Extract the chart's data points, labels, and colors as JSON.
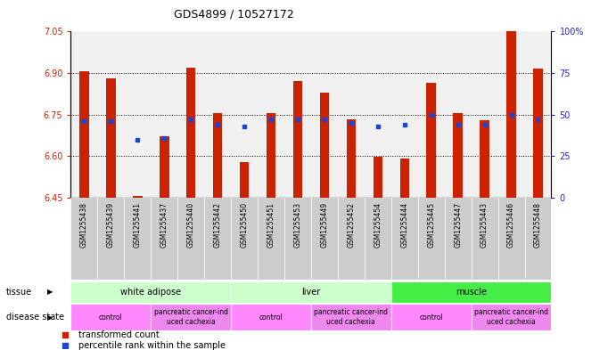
{
  "title": "GDS4899 / 10527172",
  "samples": [
    "GSM1255438",
    "GSM1255439",
    "GSM1255441",
    "GSM1255437",
    "GSM1255440",
    "GSM1255442",
    "GSM1255450",
    "GSM1255451",
    "GSM1255453",
    "GSM1255449",
    "GSM1255452",
    "GSM1255454",
    "GSM1255444",
    "GSM1255445",
    "GSM1255447",
    "GSM1255443",
    "GSM1255446",
    "GSM1255448"
  ],
  "transformed_count": [
    6.905,
    6.882,
    6.455,
    6.672,
    6.918,
    6.757,
    6.578,
    6.757,
    6.872,
    6.83,
    6.733,
    6.598,
    6.592,
    6.864,
    6.757,
    6.73,
    7.05,
    6.915
  ],
  "percentile_rank": [
    46,
    46,
    35,
    36,
    47,
    44,
    43,
    47,
    47,
    47,
    45,
    43,
    44,
    50,
    44,
    44,
    50,
    47
  ],
  "y_min": 6.45,
  "y_max": 7.05,
  "y_ticks": [
    6.45,
    6.6,
    6.75,
    6.9,
    7.05
  ],
  "right_y_ticks": [
    0,
    25,
    50,
    75,
    100
  ],
  "bar_color": "#cc2200",
  "dot_color": "#2244cc",
  "tissue_groups": [
    {
      "label": "white adipose",
      "start": 0,
      "end": 6,
      "color": "#ccffcc"
    },
    {
      "label": "liver",
      "start": 6,
      "end": 12,
      "color": "#ccffcc"
    },
    {
      "label": "muscle",
      "start": 12,
      "end": 18,
      "color": "#44ee44"
    }
  ],
  "disease_groups": [
    {
      "label": "control",
      "start": 0,
      "end": 3,
      "color": "#ff88ff"
    },
    {
      "label": "pancreatic cancer-ind\nuced cachexia",
      "start": 3,
      "end": 6,
      "color": "#ee88ee"
    },
    {
      "label": "control",
      "start": 6,
      "end": 9,
      "color": "#ff88ff"
    },
    {
      "label": "pancreatic cancer-ind\nuced cachexia",
      "start": 9,
      "end": 12,
      "color": "#ee88ee"
    },
    {
      "label": "control",
      "start": 12,
      "end": 15,
      "color": "#ff88ff"
    },
    {
      "label": "pancreatic cancer-ind\nuced cachexia",
      "start": 15,
      "end": 18,
      "color": "#ee88ee"
    }
  ],
  "background_color": "#ffffff"
}
